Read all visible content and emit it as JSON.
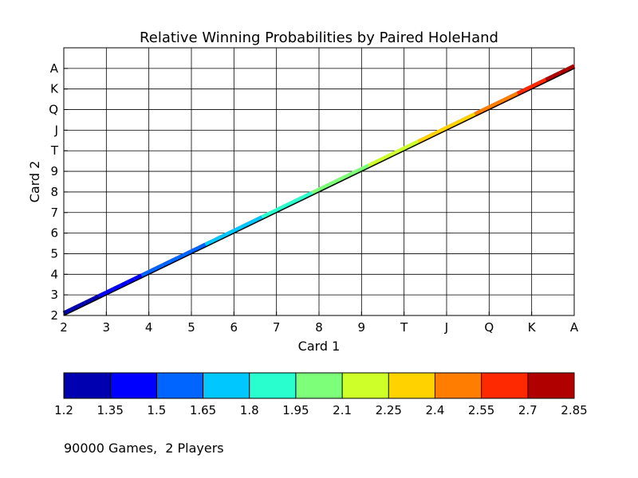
{
  "chart_data": {
    "type": "line",
    "title": "Relative Winning Probabilities by Paired HoleHand",
    "xlabel": "Card 1",
    "ylabel": "Card 2",
    "x_ticks": [
      "2",
      "3",
      "4",
      "5",
      "6",
      "7",
      "8",
      "9",
      "T",
      "J",
      "Q",
      "K",
      "A"
    ],
    "y_ticks": [
      "2",
      "3",
      "4",
      "5",
      "6",
      "7",
      "8",
      "9",
      "T",
      "J",
      "Q",
      "K",
      "A"
    ],
    "xlim": [
      0,
      12
    ],
    "ylim": [
      0,
      13
    ],
    "grid": true,
    "diagonal": {
      "x": [
        0,
        12
      ],
      "y": [
        0,
        12
      ]
    },
    "series": [
      {
        "values": [
          {
            "x": 0,
            "y": 0,
            "value": 1.2
          },
          {
            "x": 1,
            "y": 1,
            "value": 1.4
          },
          {
            "x": 2,
            "y": 2,
            "value": 1.52
          },
          {
            "x": 3,
            "y": 3,
            "value": 1.6
          },
          {
            "x": 4,
            "y": 4,
            "value": 1.72
          },
          {
            "x": 5,
            "y": 5,
            "value": 1.85
          },
          {
            "x": 6,
            "y": 6,
            "value": 1.98
          },
          {
            "x": 7,
            "y": 7,
            "value": 2.08
          },
          {
            "x": 8,
            "y": 8,
            "value": 2.2
          },
          {
            "x": 9,
            "y": 9,
            "value": 2.32
          },
          {
            "x": 10,
            "y": 10,
            "value": 2.45
          },
          {
            "x": 11,
            "y": 11,
            "value": 2.6
          },
          {
            "x": 12,
            "y": 12,
            "value": 2.85
          }
        ]
      }
    ],
    "colorbar": {
      "orientation": "horizontal",
      "ticks": [
        "1.2",
        "1.35",
        "1.5",
        "1.65",
        "1.8",
        "1.95",
        "2.1",
        "2.25",
        "2.4",
        "2.55",
        "2.7",
        "2.85"
      ],
      "range": [
        1.2,
        2.85
      ],
      "colors": [
        "#0000b0",
        "#0000ff",
        "#0064ff",
        "#00c8ff",
        "#29ffce",
        "#7dff7a",
        "#ceff29",
        "#ffd200",
        "#ff7d00",
        "#ff2900",
        "#b00000"
      ]
    }
  },
  "footnote": "90000 Games,  2 Players"
}
